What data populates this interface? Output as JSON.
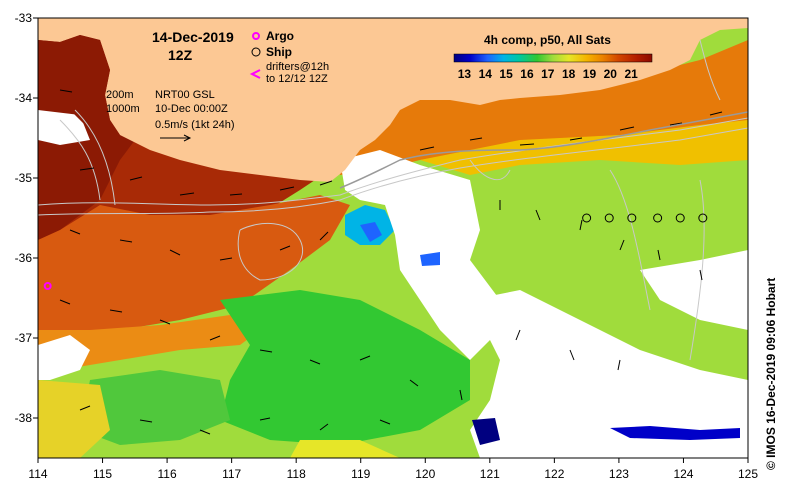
{
  "map": {
    "date": "14-Dec-2019",
    "time": "12Z",
    "lon_ticks": [
      "114",
      "115",
      "116",
      "117",
      "118",
      "119",
      "120",
      "121",
      "122",
      "123",
      "124",
      "125"
    ],
    "lat_ticks": [
      "-33",
      "-34",
      "-35",
      "-36",
      "-37",
      "-38"
    ],
    "lon_range": [
      114,
      125
    ],
    "lat_range": [
      -38.5,
      -33
    ]
  },
  "legend": {
    "argo": "Argo",
    "ship": "Ship",
    "drifters_line1": "drifters@12h",
    "drifters_line2": "to 12/12 12Z",
    "contour_200": "200m",
    "contour_1000": "1000m",
    "product_line1": "NRT00 GSL",
    "product_line2": "10-Dec 00:00Z",
    "scale_vector": "0.5m/s (1kt 24h)"
  },
  "colorbar": {
    "title": "4h comp, p50, All Sats",
    "ticks": [
      "13",
      "14",
      "15",
      "16",
      "17",
      "18",
      "19",
      "20",
      "21"
    ],
    "range": [
      12.5,
      22
    ],
    "colors": [
      "#000080",
      "#0000c8",
      "#1e64ff",
      "#00b4e6",
      "#00c8a0",
      "#32c832",
      "#a0dc3c",
      "#e6e628",
      "#f5b400",
      "#eb8200",
      "#d24600",
      "#b41e00",
      "#8c0a00"
    ]
  },
  "ship_positions": [
    {
      "lon": 122.5,
      "lat": -35.5
    },
    {
      "lon": 122.85,
      "lat": -35.5
    },
    {
      "lon": 123.2,
      "lat": -35.5
    },
    {
      "lon": 123.6,
      "lat": -35.5
    },
    {
      "lon": 123.95,
      "lat": -35.5
    },
    {
      "lon": 124.3,
      "lat": -35.5
    }
  ],
  "argo_positions": [
    {
      "lon": 114.15,
      "lat": -36.35
    }
  ],
  "colors": {
    "land": "#fcc894",
    "no_data": "#ffffff",
    "contour": "#c8c8c8",
    "argo": "#ff00ff"
  },
  "credit": "© IMOS 16-Dec-2019 09:06 Hobart"
}
